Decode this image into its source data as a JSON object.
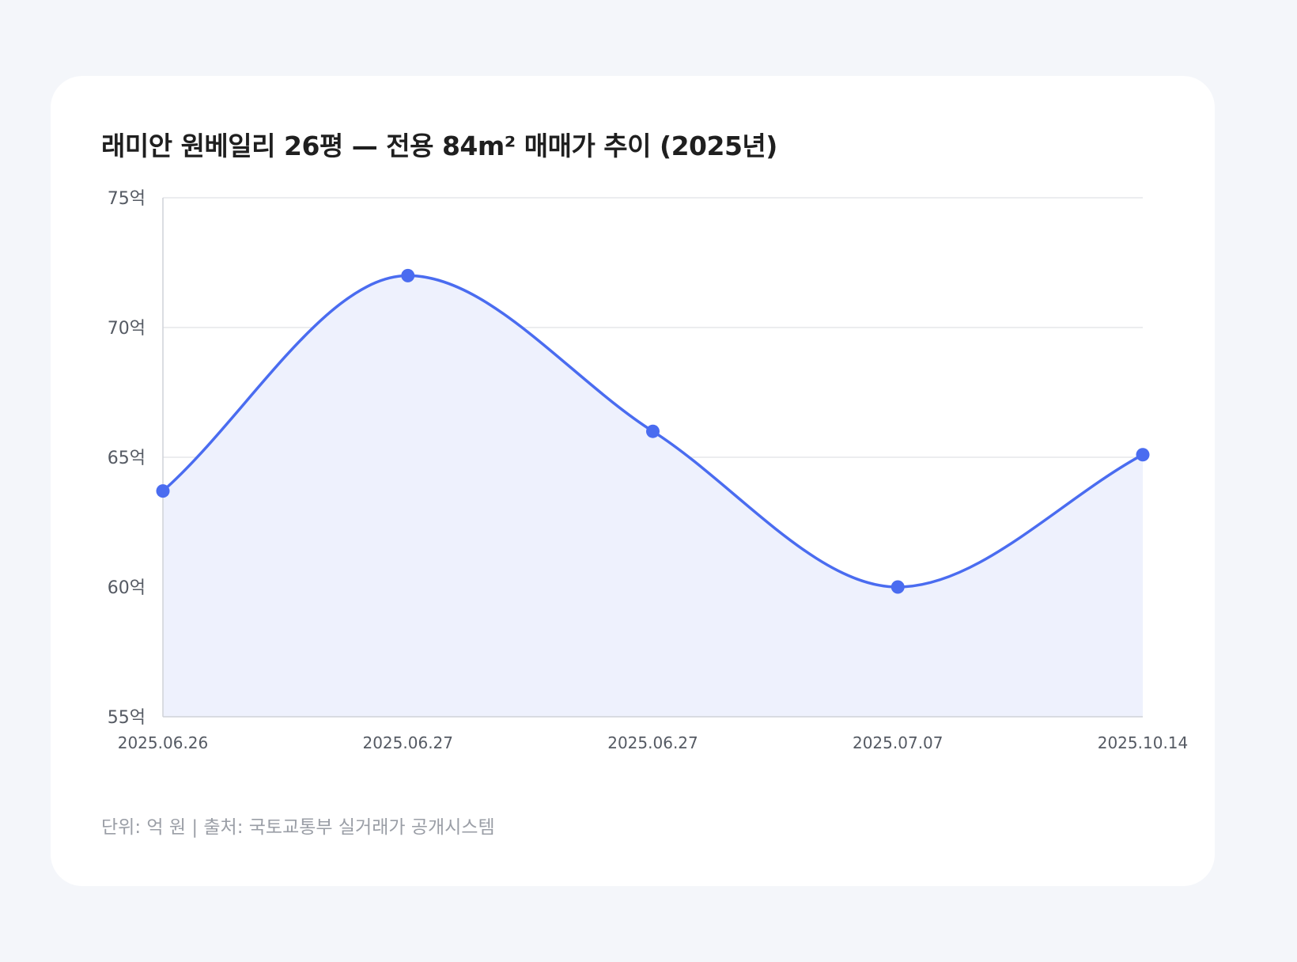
{
  "chart_data": {
    "type": "line",
    "title": "래미안 원베일리 26평 — 전용 84m² 매매가 추이 (2025년)",
    "x": [
      "2025.06.26",
      "2025.06.27",
      "2025.06.27",
      "2025.07.07",
      "2025.10.14"
    ],
    "series": [
      {
        "values": [
          63.7,
          72.0,
          66.0,
          60.0,
          65.1
        ]
      }
    ],
    "ylim": [
      55,
      75
    ],
    "yticks": [
      75,
      70,
      65,
      60,
      55
    ],
    "ytick_labels": [
      "75억",
      "70억",
      "65억",
      "60억",
      "55억"
    ],
    "xlabel": "",
    "ylabel": "",
    "grid": true,
    "smooth": true,
    "area_fill": true,
    "colors": {
      "line": "#4a6cf0",
      "fill": "#eef1fd",
      "grid": "#e6e7ea",
      "axis": "#cfd2d8"
    }
  },
  "footnote": "단위: 억 원 | 출처: 국토교통부 실거래가 공개시스템"
}
